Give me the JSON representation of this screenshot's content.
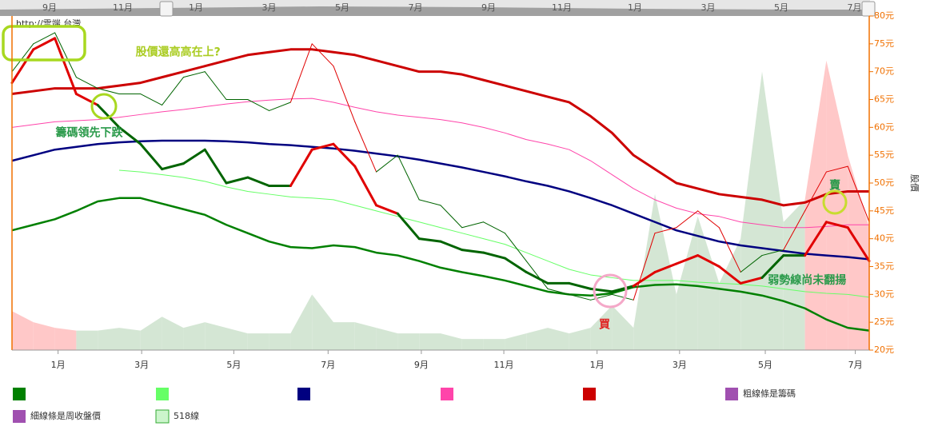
{
  "watermark": "http://雲端.台灣",
  "navigator": {
    "labels": [
      "9月",
      "11月",
      "1月",
      "3月",
      "5月",
      "7月",
      "9月",
      "11月",
      "1月",
      "3月",
      "5月",
      "7月"
    ]
  },
  "chart_data": {
    "type": "line",
    "y_axis_title": "股價",
    "ylim": [
      20,
      80
    ],
    "yticks": [
      {
        "value": 20,
        "label": "20元"
      },
      {
        "value": 25,
        "label": "25元"
      },
      {
        "value": 30,
        "label": "30元"
      },
      {
        "value": 35,
        "label": "35元"
      },
      {
        "value": 40,
        "label": "40元"
      },
      {
        "value": 45,
        "label": "45元"
      },
      {
        "value": 50,
        "label": "50元"
      },
      {
        "value": 55,
        "label": "55元"
      },
      {
        "value": 60,
        "label": "60元"
      },
      {
        "value": 65,
        "label": "65元"
      },
      {
        "value": 70,
        "label": "70元"
      },
      {
        "value": 75,
        "label": "75元"
      },
      {
        "value": 80,
        "label": "80元"
      }
    ],
    "xlim": [
      0,
      80
    ],
    "xticks": [
      {
        "value": 4.3,
        "label": "1月"
      },
      {
        "value": 12.1,
        "label": "3月"
      },
      {
        "value": 20.7,
        "label": "5月"
      },
      {
        "value": 29.5,
        "label": "7月"
      },
      {
        "value": 38.2,
        "label": "9月"
      },
      {
        "value": 45.9,
        "label": "11月"
      },
      {
        "value": 54.6,
        "label": "1月"
      },
      {
        "value": 62.3,
        "label": "3月"
      },
      {
        "value": 70.3,
        "label": "5月"
      },
      {
        "value": 78.7,
        "label": "7月"
      }
    ],
    "x": [
      0,
      2,
      4,
      6,
      8,
      10,
      12,
      14,
      16,
      18,
      20,
      22,
      24,
      26,
      28,
      30,
      32,
      34,
      36,
      38,
      40,
      42,
      44,
      46,
      48,
      50,
      52,
      54,
      56,
      58,
      60,
      62,
      64,
      66,
      68,
      70,
      72,
      74,
      76,
      78,
      80
    ],
    "area": {
      "values": [
        27,
        25,
        24,
        23.5,
        23.5,
        24,
        23.5,
        26,
        24,
        25,
        24,
        23,
        23,
        23,
        30,
        25,
        25,
        24,
        23,
        23,
        23,
        22,
        22,
        22,
        23,
        24,
        23,
        24,
        28,
        24,
        48,
        30,
        44,
        32,
        40,
        70,
        43,
        47,
        72,
        55,
        42
      ],
      "segment_colors": [
        "#ffc8c8",
        "#ffc8c8",
        "#ffc8c8",
        "#d4e6d4",
        "#d4e6d4",
        "#d4e6d4",
        "#d4e6d4",
        "#d4e6d4",
        "#d4e6d4",
        "#d4e6d4",
        "#d4e6d4",
        "#d4e6d4",
        "#d4e6d4",
        "#d4e6d4",
        "#d4e6d4",
        "#d4e6d4",
        "#d4e6d4",
        "#d4e6d4",
        "#d4e6d4",
        "#d4e6d4",
        "#d4e6d4",
        "#d4e6d4",
        "#d4e6d4",
        "#d4e6d4",
        "#d4e6d4",
        "#d4e6d4",
        "#d4e6d4",
        "#d4e6d4",
        "#d4e6d4",
        "#d4e6d4",
        "#d4e6d4",
        "#d4e6d4",
        "#d4e6d4",
        "#d4e6d4",
        "#d4e6d4",
        "#d4e6d4",
        "#d4e6d4",
        "#ffc8c8",
        "#ffc8c8",
        "#ffc8c8"
      ]
    },
    "series": [
      {
        "color": "#008000",
        "width": 2.5,
        "values": [
          41.5,
          42.5,
          43.5,
          45,
          46.7,
          47.3,
          47.3,
          46.3,
          45.3,
          44.3,
          42.5,
          41,
          39.5,
          38.5,
          38.3,
          38.8,
          38.5,
          37.5,
          37,
          36,
          34.8,
          34,
          33.3,
          32.5,
          31.5,
          30.5,
          30,
          29.8,
          30.2,
          31.3,
          31.7,
          31.8,
          31.5,
          31,
          30.5,
          29.8,
          28.8,
          27.5,
          25.5,
          24,
          23.5
        ]
      },
      {
        "color": "#66ff66",
        "width": 1,
        "values": [
          null,
          null,
          null,
          null,
          null,
          52.3,
          52,
          51.5,
          51,
          50.3,
          49.3,
          48.5,
          48,
          47.5,
          47.3,
          47,
          46,
          45,
          44,
          43,
          42,
          41,
          40,
          39,
          37.5,
          36,
          34.5,
          33.5,
          33,
          32.5,
          32.5,
          32.5,
          32.2,
          32,
          31.8,
          31.5,
          31,
          30.5,
          30.2,
          30,
          29.5
        ]
      },
      {
        "color": "#000080",
        "width": 2.5,
        "values": [
          54,
          55,
          56,
          56.5,
          57,
          57.3,
          57.5,
          57.6,
          57.6,
          57.6,
          57.5,
          57.3,
          57,
          56.8,
          56.5,
          56.2,
          55.8,
          55.3,
          54.8,
          54.2,
          53.5,
          52.8,
          52,
          51.2,
          50.3,
          49.5,
          48.5,
          47.3,
          46,
          44.5,
          43,
          41.5,
          40.5,
          39.5,
          38.8,
          38.3,
          37.8,
          37.3,
          37,
          36.7,
          36.3
        ]
      },
      {
        "color": "#ff44aa",
        "width": 1,
        "values": [
          60,
          60.5,
          61,
          61.2,
          61.4,
          61.8,
          62.3,
          62.8,
          63.2,
          63.7,
          64.2,
          64.6,
          64.9,
          65.1,
          65.2,
          64.5,
          63.6,
          62.8,
          62.2,
          61.8,
          61.4,
          60.8,
          60,
          59,
          57.8,
          57,
          56,
          54,
          51.5,
          49,
          47,
          45.5,
          44.5,
          44,
          43,
          42.5,
          42,
          42,
          42.2,
          42.5,
          42.5
        ]
      },
      {
        "color": "#cc0000",
        "width": 3,
        "values": [
          66,
          66.5,
          67,
          67,
          67,
          67.5,
          68,
          69,
          70,
          71,
          72,
          73,
          73.5,
          74,
          74,
          73.5,
          73,
          72,
          71,
          70,
          70,
          69.5,
          68.5,
          67.5,
          66.5,
          65.5,
          64.5,
          62,
          59,
          55,
          52.5,
          50,
          49,
          48,
          47.5,
          47,
          46,
          46.5,
          48,
          48.5,
          48.5
        ]
      },
      {
        "color": "#006400",
        "width": 1,
        "values": [
          70,
          75,
          77,
          69,
          67,
          66,
          66,
          64,
          69,
          70,
          65,
          65,
          63,
          64.5,
          75,
          71,
          61,
          52,
          55,
          47,
          46,
          42,
          43,
          41,
          36,
          31,
          30,
          29,
          30,
          29,
          41,
          42,
          45,
          42,
          34,
          37,
          38,
          45,
          52,
          53,
          43
        ],
        "segment_colors": [
          "#006400",
          "#006400",
          "#006400",
          "#006400",
          "#006400",
          "#006400",
          "#006400",
          "#006400",
          "#006400",
          "#006400",
          "#006400",
          "#006400",
          "#006400",
          "#e00000",
          "#e00000",
          "#e00000",
          "#e00000",
          "#006400",
          "#006400",
          "#006400",
          "#006400",
          "#006400",
          "#006400",
          "#006400",
          "#006400",
          "#006400",
          "#006400",
          "#006400",
          "#006400",
          "#e00000",
          "#e00000",
          "#e00000",
          "#e00000",
          "#e00000",
          "#006400",
          "#006400",
          "#e00000",
          "#e00000",
          "#e00000",
          "#e00000"
        ]
      },
      {
        "color": "#006400",
        "width": 3,
        "values": [
          68,
          74,
          76,
          66,
          64,
          60,
          57,
          52.5,
          53.5,
          56,
          50,
          51,
          49.5,
          49.5,
          56,
          57,
          53,
          46,
          44.5,
          40,
          39.5,
          38,
          37.5,
          36.5,
          34,
          32,
          32,
          31,
          30.5,
          31.5,
          34,
          35.5,
          37,
          35,
          32,
          33,
          37,
          37,
          43,
          42,
          36
        ],
        "segment_colors": [
          "#e00000",
          "#e00000",
          "#e00000",
          "#e00000",
          "#006400",
          "#006400",
          "#006400",
          "#006400",
          "#006400",
          "#006400",
          "#006400",
          "#006400",
          "#006400",
          "#e00000",
          "#e00000",
          "#e00000",
          "#e00000",
          "#e00000",
          "#006400",
          "#006400",
          "#006400",
          "#006400",
          "#006400",
          "#006400",
          "#006400",
          "#006400",
          "#006400",
          "#006400",
          "#006400",
          "#e00000",
          "#e00000",
          "#e00000",
          "#e00000",
          "#e00000",
          "#e00000",
          "#006400",
          "#006400",
          "#e00000",
          "#e00000",
          "#e00000"
        ]
      }
    ],
    "annotations": [
      {
        "text": "股價還高高在上?",
        "color": "#aacc22",
        "x": 15.5,
        "y": 73.5
      },
      {
        "text": "籌碼領先下跌",
        "color": "#2a9a4a",
        "x": 7.2,
        "y": 59
      },
      {
        "text": "買",
        "color": "#e02020",
        "x": 55.3,
        "y": 24.5
      },
      {
        "text": "賣",
        "color": "#2a9a4a",
        "x": 76.8,
        "y": 49.5
      },
      {
        "text": "弱勢線尚未翻揚",
        "color": "#2a9a4a",
        "x": 74.2,
        "y": 32.5
      }
    ],
    "legend": [
      {
        "color": "#008000"
      },
      {
        "color": "#66ff66"
      },
      {
        "color": "#000080"
      },
      {
        "color": "#ff44aa"
      },
      {
        "color": "#cc0000"
      },
      {
        "color": "#a050b0",
        "label": "粗線條是籌碼"
      },
      {
        "color": "#a050b0",
        "label": "細線條是周收盤價"
      },
      {
        "color": "#ccf5cc",
        "label": "518線"
      }
    ]
  }
}
